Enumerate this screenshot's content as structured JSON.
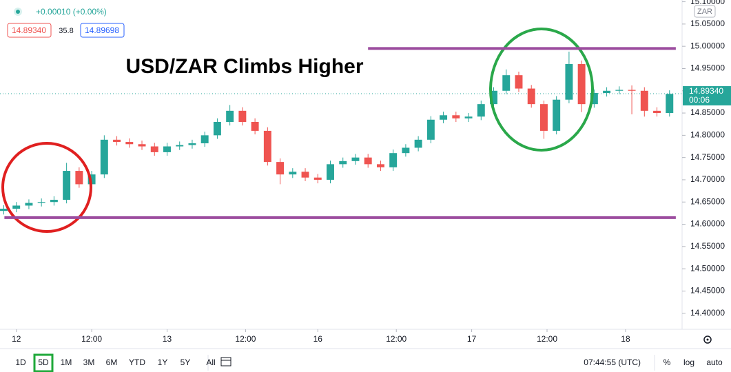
{
  "chart_data": {
    "type": "candlestick",
    "title": "USD/ZAR Climbs Higher",
    "change": "+0.00010 (+0.00%)",
    "bid": "14.89340",
    "spread": "35.8",
    "ask": "14.89698",
    "currency": "ZAR",
    "x": [
      -2,
      0,
      2,
      4,
      6,
      8,
      10,
      12,
      14,
      16,
      18,
      20,
      22,
      24,
      26,
      28,
      30,
      32,
      34,
      36,
      38,
      40,
      42,
      44,
      46,
      48,
      50,
      52,
      54,
      56,
      58,
      60,
      62,
      64,
      66,
      68,
      70,
      72,
      74,
      76,
      78,
      80,
      82,
      84,
      86,
      88,
      90,
      92,
      94,
      96,
      98,
      100,
      102,
      104
    ],
    "open": [
      14.63,
      14.635,
      14.642,
      14.648,
      14.65,
      14.655,
      14.72,
      14.69,
      14.712,
      14.79,
      14.785,
      14.78,
      14.775,
      14.762,
      14.775,
      14.778,
      14.782,
      14.8,
      14.83,
      14.855,
      14.83,
      14.81,
      14.74,
      14.712,
      14.718,
      14.705,
      14.7,
      14.735,
      14.742,
      14.75,
      14.735,
      14.728,
      14.76,
      14.772,
      14.79,
      14.835,
      14.845,
      14.838,
      14.842,
      14.87,
      14.9,
      14.935,
      14.905,
      14.87,
      14.81,
      14.88,
      14.96,
      14.87,
      14.895,
      14.9,
      14.902,
      14.9,
      14.855,
      14.85
    ],
    "high": [
      14.643,
      14.65,
      14.656,
      14.658,
      14.663,
      14.738,
      14.728,
      14.72,
      14.8,
      14.798,
      14.793,
      14.788,
      14.783,
      14.783,
      14.786,
      14.79,
      14.808,
      14.838,
      14.868,
      14.863,
      14.838,
      14.818,
      14.748,
      14.726,
      14.726,
      14.713,
      14.743,
      14.75,
      14.758,
      14.758,
      14.743,
      14.768,
      14.78,
      14.798,
      14.843,
      14.853,
      14.853,
      14.85,
      14.878,
      14.908,
      14.948,
      14.943,
      14.913,
      14.878,
      14.888,
      14.988,
      14.968,
      14.903,
      14.908,
      14.91,
      14.912,
      14.908,
      14.863,
      14.901
    ],
    "low": [
      14.622,
      14.627,
      14.634,
      14.64,
      14.642,
      14.647,
      14.682,
      14.682,
      14.704,
      14.777,
      14.772,
      14.767,
      14.754,
      14.754,
      14.767,
      14.77,
      14.774,
      14.792,
      14.822,
      14.822,
      14.802,
      14.732,
      14.69,
      14.704,
      14.697,
      14.692,
      14.692,
      14.727,
      14.734,
      14.727,
      14.72,
      14.72,
      14.752,
      14.764,
      14.782,
      14.827,
      14.83,
      14.83,
      14.834,
      14.862,
      14.892,
      14.897,
      14.862,
      14.792,
      14.802,
      14.872,
      14.852,
      14.862,
      14.887,
      14.892,
      14.847,
      14.842,
      14.842,
      14.842
    ],
    "close": [
      14.635,
      14.642,
      14.648,
      14.65,
      14.655,
      14.72,
      14.69,
      14.712,
      14.79,
      14.785,
      14.78,
      14.775,
      14.762,
      14.775,
      14.778,
      14.782,
      14.8,
      14.83,
      14.855,
      14.83,
      14.81,
      14.74,
      14.712,
      14.718,
      14.705,
      14.7,
      14.735,
      14.742,
      14.75,
      14.735,
      14.728,
      14.76,
      14.772,
      14.79,
      14.835,
      14.845,
      14.838,
      14.842,
      14.87,
      14.9,
      14.935,
      14.905,
      14.87,
      14.81,
      14.88,
      14.96,
      14.87,
      14.895,
      14.9,
      14.902,
      14.9,
      14.855,
      14.85,
      14.893
    ],
    "up_color": "#26a69a",
    "down_color": "#ef5350",
    "xlim": [
      -2.6,
      106
    ],
    "xticks": [
      {
        "value": 0,
        "label": "12"
      },
      {
        "value": 12,
        "label": "12:00"
      },
      {
        "value": 24,
        "label": "13"
      },
      {
        "value": 36.5,
        "label": "12:00"
      },
      {
        "value": 48,
        "label": "16"
      },
      {
        "value": 60.5,
        "label": "12:00"
      },
      {
        "value": 72.5,
        "label": "17"
      },
      {
        "value": 84.5,
        "label": "12:00"
      },
      {
        "value": 97,
        "label": "18"
      }
    ],
    "ylim": [
      14.364,
      15.104
    ],
    "yticks": [
      {
        "value": 15.1,
        "label": "15.10000"
      },
      {
        "value": 15.05,
        "label": "15.05000"
      },
      {
        "value": 15.0,
        "label": "15.00000"
      },
      {
        "value": 14.95,
        "label": "14.95000"
      },
      {
        "value": 14.9,
        "label": "14.90000"
      },
      {
        "value": 14.85,
        "label": "14.85000"
      },
      {
        "value": 14.8,
        "label": "14.80000"
      },
      {
        "value": 14.75,
        "label": "14.75000"
      },
      {
        "value": 14.7,
        "label": "14.70000"
      },
      {
        "value": 14.65,
        "label": "14.65000"
      },
      {
        "value": 14.6,
        "label": "14.60000"
      },
      {
        "value": 14.55,
        "label": "14.55000"
      },
      {
        "value": 14.5,
        "label": "14.50000"
      },
      {
        "value": 14.45,
        "label": "14.45000"
      },
      {
        "value": 14.4,
        "label": "14.40000"
      }
    ],
    "last_price": {
      "value": 14.8934,
      "label": "14.89340"
    },
    "countdown": "00:06",
    "hlines": [
      {
        "value": 14.995,
        "from": 56,
        "to": 105,
        "color": "#9b4b9e"
      },
      {
        "value": 14.615,
        "from": -1.9,
        "to": 105,
        "color": "#9b4b9e"
      }
    ],
    "ranges": [
      "1D",
      "5D",
      "1M",
      "3M",
      "6M",
      "YTD",
      "1Y",
      "5Y",
      "All"
    ],
    "active_range": 1,
    "clock": "07:44:55 (UTC)",
    "scale_options": [
      "%",
      "log",
      "auto"
    ]
  }
}
